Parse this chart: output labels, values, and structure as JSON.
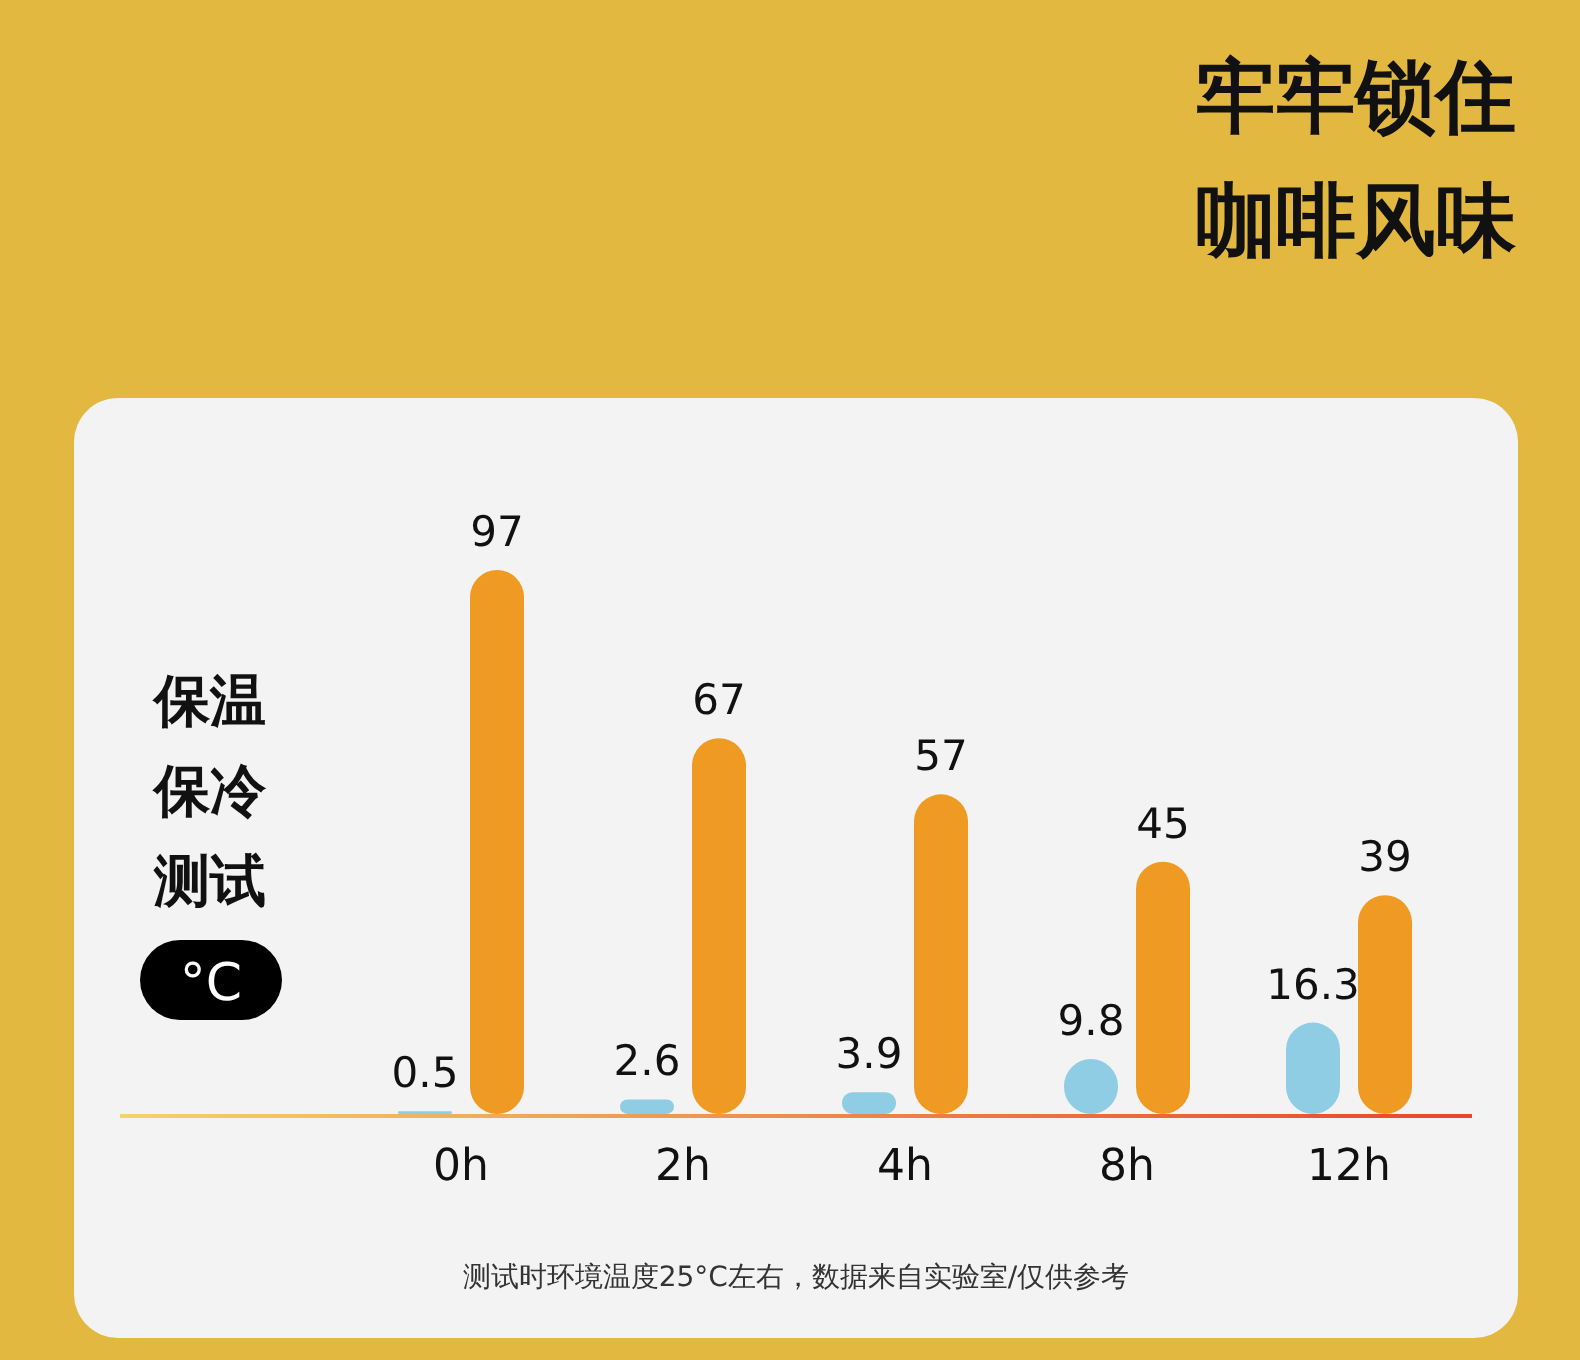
{
  "chart_data": {
    "type": "bar",
    "title": "牢牢锁住",
    "subtitle": "咖啡风味",
    "ylabel": "保温保冷测试",
    "categories": [
      "0h",
      "2h",
      "4h",
      "8h",
      "12h"
    ],
    "series": [
      {
        "color": "#8fcde4",
        "values": [
          0.5,
          2.6,
          3.9,
          9.8,
          16.3
        ]
      },
      {
        "color": "#ef9a22",
        "values": [
          97,
          67,
          57,
          45,
          39
        ]
      }
    ],
    "data_labels": true,
    "tick_labels": "x",
    "annotations": [
      "°C",
      "测试时环境温度25°C左右，数据来自实验室/仅供参考"
    ]
  }
}
